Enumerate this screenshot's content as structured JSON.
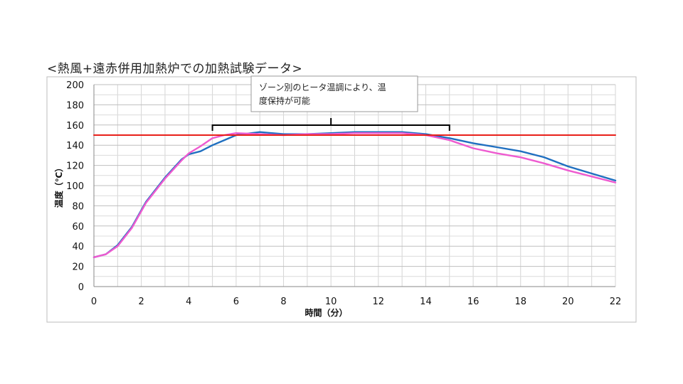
{
  "title": "<熱風+遠赤併用加熱炉での加熱試験データ>",
  "chart_data": {
    "type": "line",
    "xlabel": "時間（分）",
    "ylabel": "温度（℃）",
    "xlim": [
      0,
      22
    ],
    "ylim": [
      0,
      200
    ],
    "x_ticks": [
      0,
      2,
      4,
      6,
      8,
      10,
      12,
      14,
      16,
      18,
      20,
      22
    ],
    "y_ticks": [
      0,
      20,
      40,
      60,
      80,
      100,
      120,
      140,
      160,
      180,
      200
    ],
    "grid": true,
    "series": [
      {
        "color": "#1f6fc0",
        "x": [
          0,
          0.5,
          1,
          1.6,
          2.2,
          3,
          3.7,
          4,
          4.5,
          5,
          5.5,
          6,
          7,
          8,
          9,
          10,
          11,
          12,
          13,
          14,
          15,
          16,
          17,
          18,
          19,
          20,
          21,
          22
        ],
        "y": [
          29,
          32,
          41,
          59,
          84,
          108,
          126,
          131,
          134,
          140,
          145,
          150,
          153,
          151,
          151,
          152,
          153,
          153,
          153,
          151,
          147,
          142,
          138,
          134,
          128,
          119,
          112,
          105
        ]
      },
      {
        "color": "#ee5bd0",
        "x": [
          0,
          0.5,
          1,
          1.6,
          2.2,
          3,
          3.7,
          4,
          4.5,
          5,
          5.5,
          6,
          7,
          8,
          9,
          10,
          11,
          12,
          13,
          14,
          15,
          16,
          17,
          18,
          19,
          20,
          21,
          22
        ],
        "y": [
          29,
          32,
          40,
          58,
          83,
          107,
          125,
          132,
          139,
          147,
          150,
          152,
          151,
          150,
          151,
          151,
          152,
          152,
          152,
          150,
          145,
          137,
          132,
          128,
          122,
          115,
          109,
          103
        ]
      },
      {
        "color": "#e8201a",
        "x": [
          0,
          22
        ],
        "y": [
          150,
          150
        ]
      }
    ],
    "annotation": {
      "text_line1": "ゾーン別のヒータ温調により、温",
      "text_line2": "度保持が可能",
      "bracket_x": [
        5,
        15
      ]
    }
  }
}
